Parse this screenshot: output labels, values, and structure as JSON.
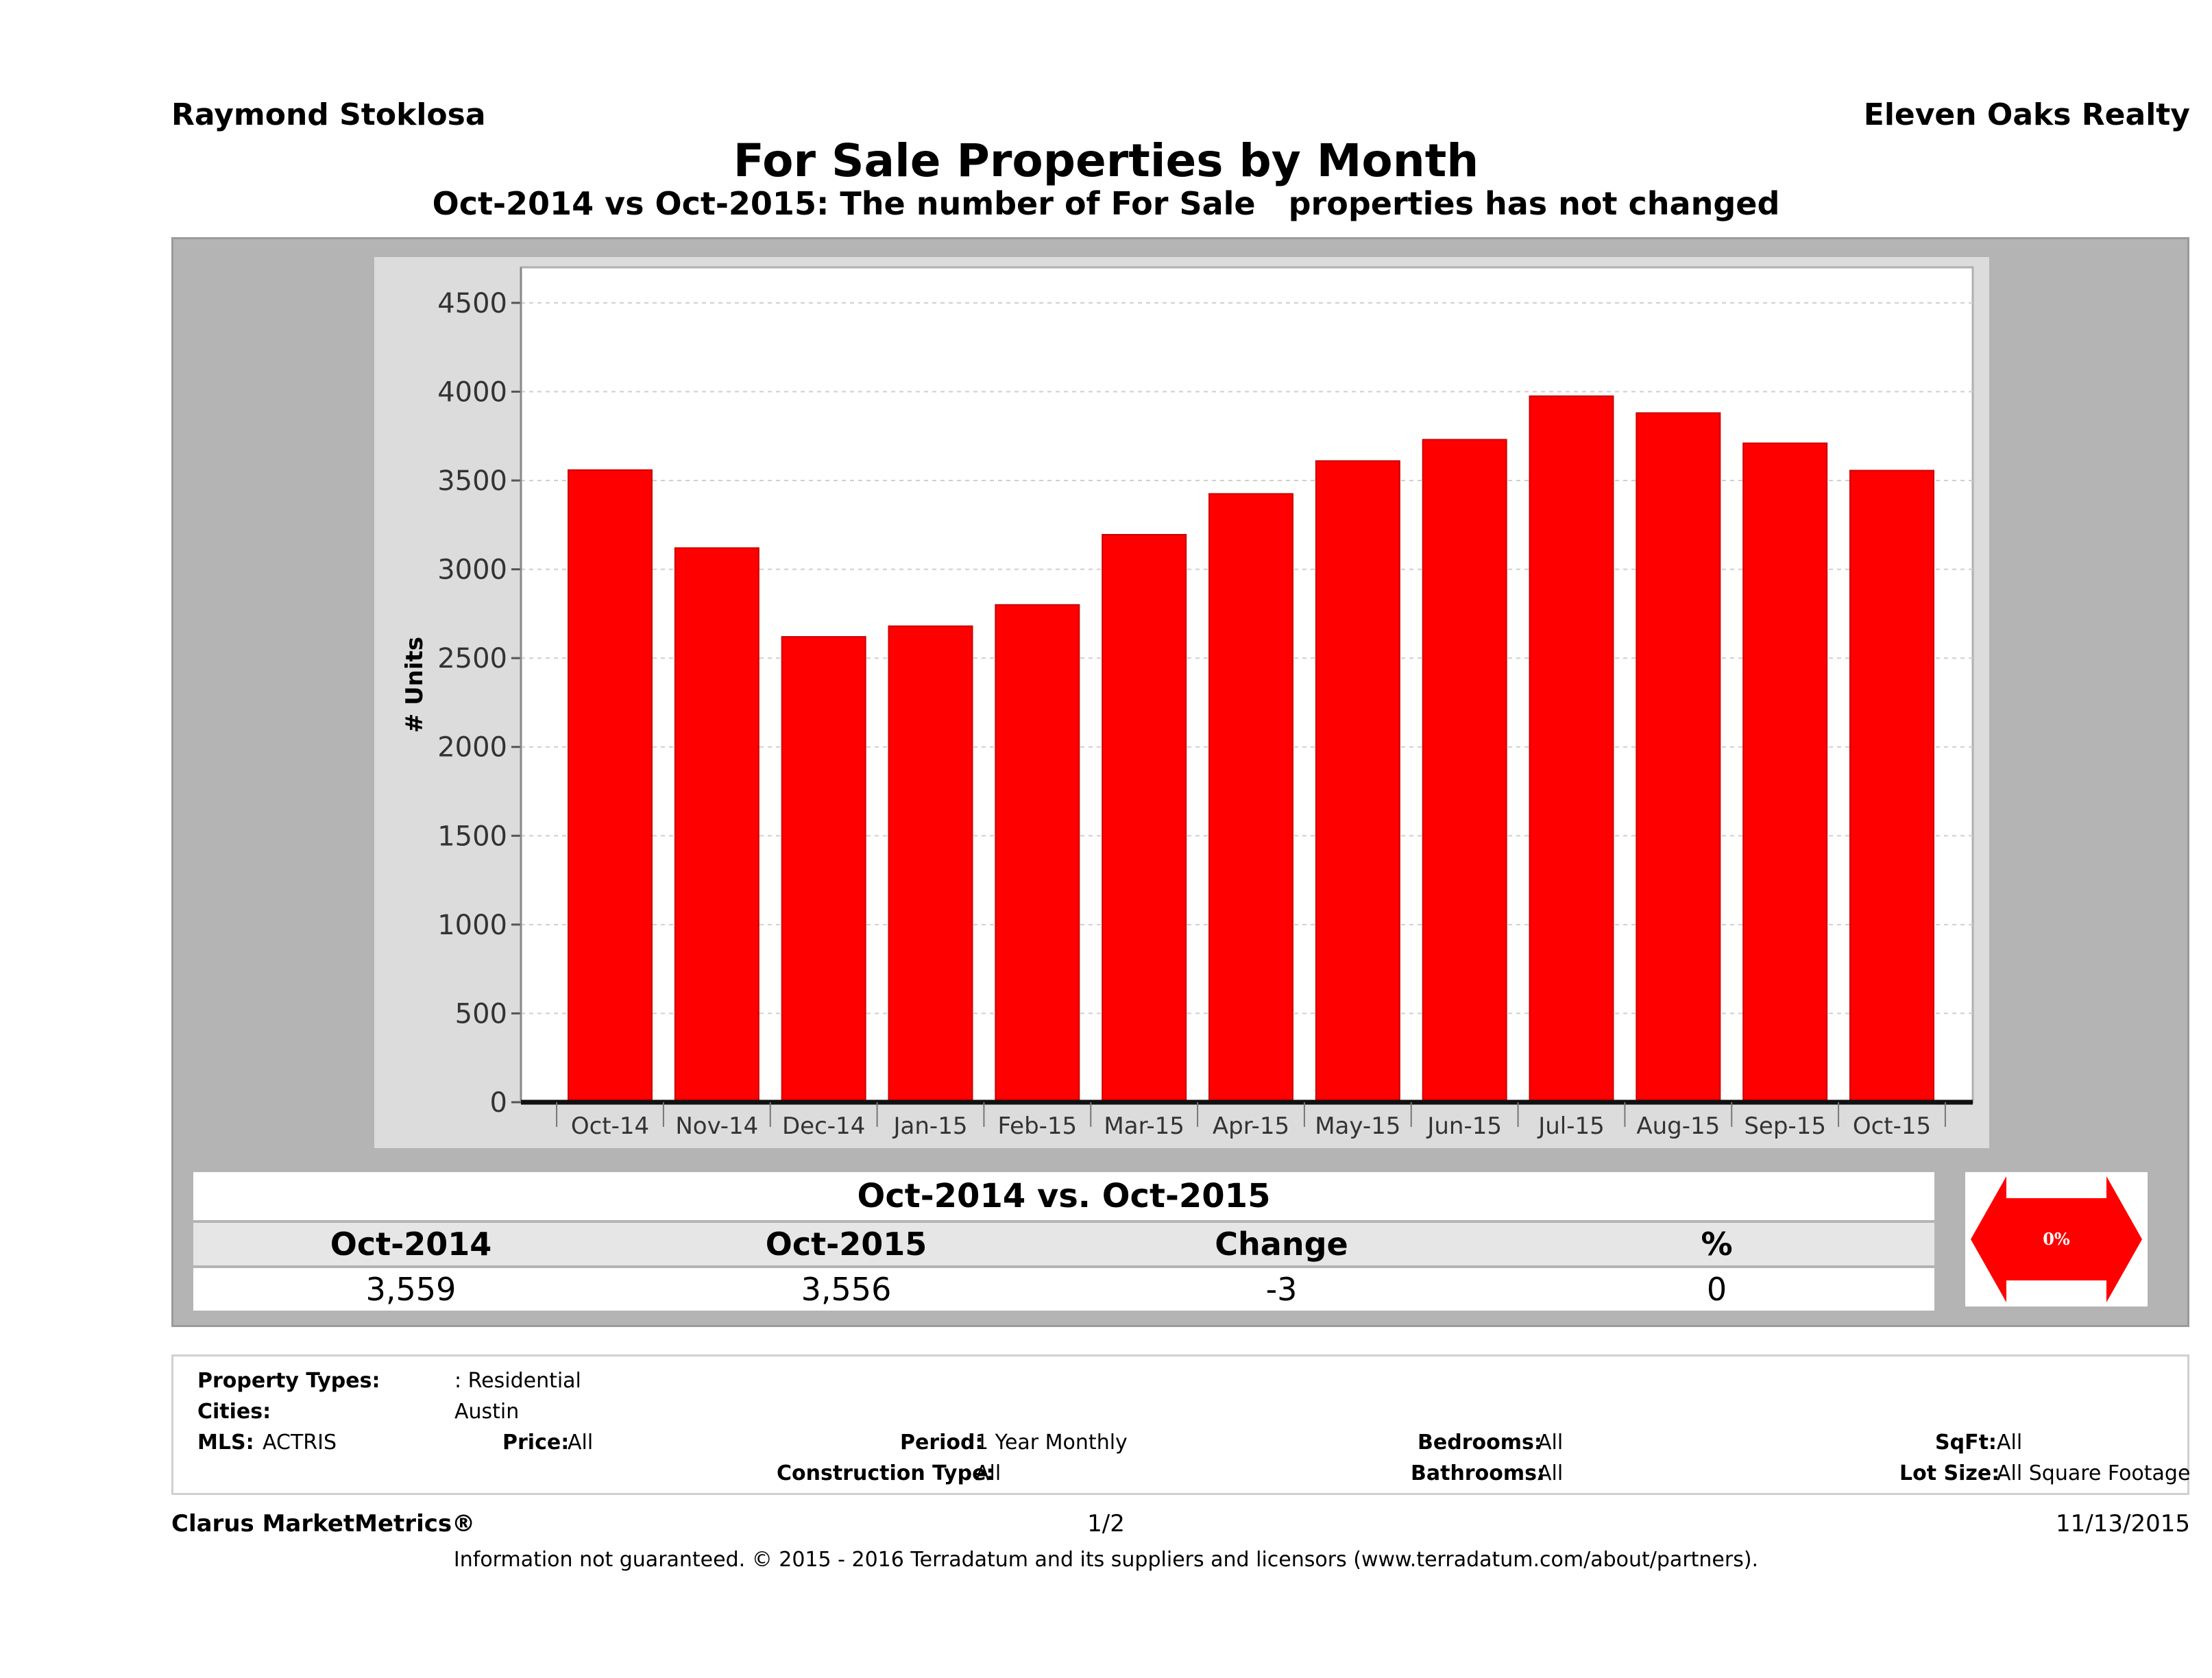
{
  "header": {
    "agent": "Raymond Stoklosa",
    "brokerage": "Eleven Oaks Realty",
    "title": "For Sale Properties by Month",
    "subtitle": "Oct-2014 vs Oct-2015: The number of For Sale   properties has not changed"
  },
  "chart_data": {
    "type": "bar",
    "ylabel": "# Units",
    "categories": [
      "Oct-14",
      "Nov-14",
      "Dec-14",
      "Jan-15",
      "Feb-15",
      "Mar-15",
      "Apr-15",
      "May-15",
      "Jun-15",
      "Jul-15",
      "Aug-15",
      "Sep-15",
      "Oct-15"
    ],
    "values": [
      3559,
      3120,
      2620,
      2680,
      2800,
      3195,
      3425,
      3610,
      3730,
      3975,
      3880,
      3710,
      3556
    ],
    "ylim": [
      0,
      4700
    ],
    "yticks": [
      0,
      500,
      1000,
      1500,
      2000,
      2500,
      3000,
      3500,
      4000,
      4500
    ],
    "grid": true,
    "bar_color": "#ff0000"
  },
  "comparison": {
    "heading": "Oct-2014 vs. Oct-2015",
    "labels": {
      "from": "Oct-2014",
      "to": "Oct-2015",
      "change": "Change",
      "pct": "%"
    },
    "values": {
      "from": "3,559",
      "to": "3,556",
      "change": "-3",
      "pct": "0"
    },
    "arrow_label": "0%",
    "arrow_color": "#ff0000"
  },
  "filters": {
    "property_types_label": "Property Types:",
    "property_types_value": ": Residential",
    "cities_label": "Cities:",
    "cities_value": "Austin",
    "mls_label": "MLS:",
    "mls_value": "ACTRIS",
    "price_label": "Price:",
    "price_value": "All",
    "period_label": "Period:",
    "period_value": "1 Year Monthly",
    "construction_label": "Construction Type:",
    "construction_value": "All",
    "bedrooms_label": "Bedrooms:",
    "bedrooms_value": "All",
    "bathrooms_label": "Bathrooms:",
    "bathrooms_value": "All",
    "sqft_label": "SqFt:",
    "sqft_value": "All",
    "lot_label": "Lot Size:",
    "lot_value": "All Square Footage"
  },
  "footer": {
    "brand": "Clarus MarketMetrics®",
    "page": "1/2",
    "date": "11/13/2015",
    "disclaimer": "Information not guaranteed. © 2015 - 2016 Terradatum and its suppliers and licensors (www.terradatum.com/about/partners)."
  }
}
